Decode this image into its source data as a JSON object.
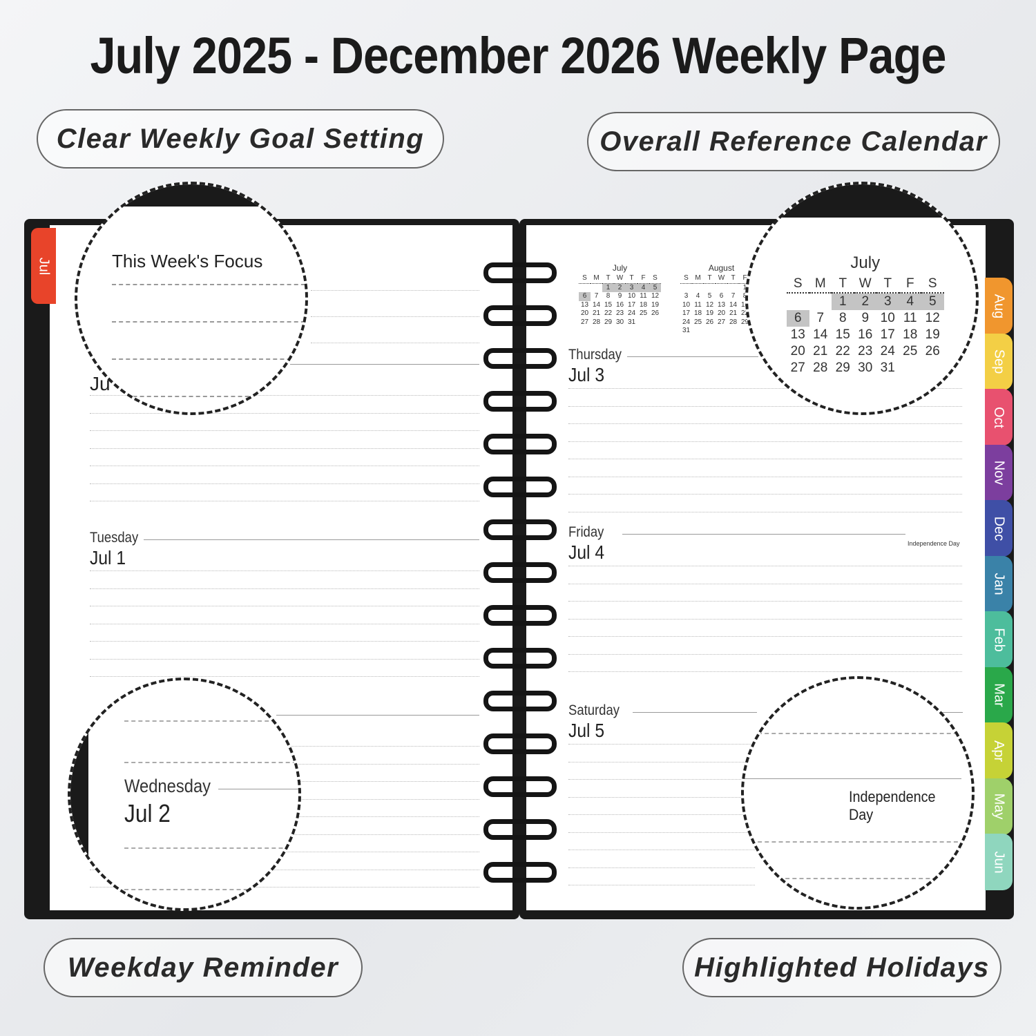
{
  "title": "July 2025 - December 2026 Weekly Page",
  "features": [
    "Clear Weekly Goal Setting",
    "Overall Reference Calendar",
    "Weekday Reminder",
    "Highlighted Holidays"
  ],
  "left_page": {
    "tab": "Jul",
    "focus_title": "This Week's Focus",
    "monday_date": "Ju",
    "tuesday": {
      "name": "Tuesday",
      "date": "Jul 1"
    },
    "wednesday": {
      "name": "Wednesday",
      "date": "Jul 2"
    }
  },
  "right_page": {
    "thursday": {
      "name": "Thursday",
      "date": "Jul 3"
    },
    "friday": {
      "name": "Friday",
      "date": "Jul 4",
      "holiday": "Independence Day"
    },
    "saturday": {
      "name": "Saturday",
      "date": "Jul 5"
    },
    "mini_calendars": [
      {
        "month": "July",
        "offset": 2,
        "days": 31,
        "highlight": [
          1,
          2,
          3,
          4,
          5,
          6
        ]
      },
      {
        "month": "August",
        "offset": 5,
        "days": 31,
        "highlight": []
      }
    ],
    "weekday_headers": [
      "S",
      "M",
      "T",
      "W",
      "T",
      "F",
      "S"
    ]
  },
  "tabs": [
    {
      "label": "Aug",
      "color": "#f0962e"
    },
    {
      "label": "Sep",
      "color": "#f3cf45"
    },
    {
      "label": "Oct",
      "color": "#e8516f"
    },
    {
      "label": "Nov",
      "color": "#7c3e9e"
    },
    {
      "label": "Dec",
      "color": "#3f4fa6"
    },
    {
      "label": "Jan",
      "color": "#3a82a8"
    },
    {
      "label": "Feb",
      "color": "#4dbd9c"
    },
    {
      "label": "Mar",
      "color": "#2aa84a"
    },
    {
      "label": "Apr",
      "color": "#c6d236"
    },
    {
      "label": "May",
      "color": "#9fd06a"
    },
    {
      "label": "Jun",
      "color": "#8fd6be"
    }
  ],
  "jul_tab_color": "#e8442a"
}
